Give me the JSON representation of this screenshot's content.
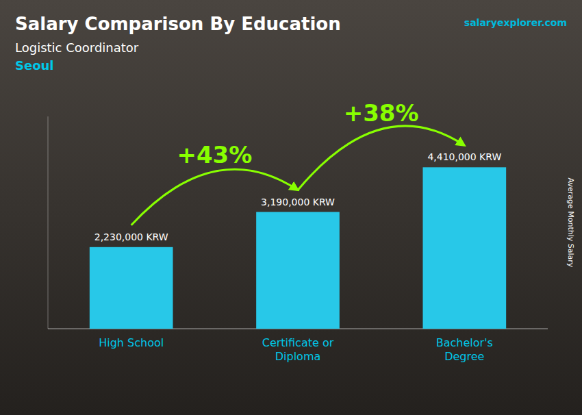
{
  "chart_data": {
    "type": "bar",
    "title": "Salary Comparison By Education",
    "subtitle": [
      "Logistic Coordinator",
      "Seoul"
    ],
    "watermark": "salaryexplorer.com",
    "ylabel": "Average Monthly Salary",
    "categories": [
      "High School",
      "Certificate or\nDiploma",
      "Bachelor's\nDegree"
    ],
    "values": [
      2230000,
      3190000,
      4410000
    ],
    "value_labels": [
      "2,230,000 KRW",
      "3,190,000 KRW",
      "4,410,000 KRW"
    ],
    "data_labels": true,
    "annotations": [
      "+43%",
      "+38%"
    ],
    "color": "#28c8e8",
    "ylim": [
      0,
      5800000
    ],
    "tick_labels": false,
    "grid": false
  }
}
